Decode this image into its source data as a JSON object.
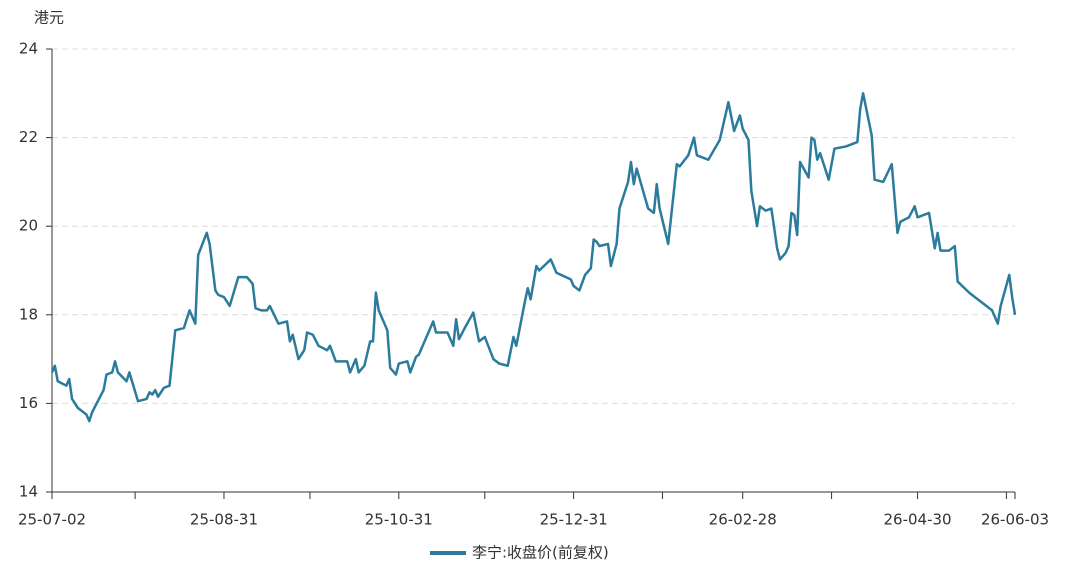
{
  "chart_data": {
    "type": "line",
    "y_label": "港元",
    "xlim": [
      "2025-07-02",
      "2026-06-03"
    ],
    "xticks": [
      {
        "value": "2025-07-02",
        "label": "25-07-02"
      },
      "2025-07-31",
      {
        "value": "2025-08-31",
        "label": "25-08-31"
      },
      "2025-09-30",
      {
        "value": "2025-10-31",
        "label": "25-10-31"
      },
      "2025-11-30",
      {
        "value": "2025-12-31",
        "label": "25-12-31"
      },
      "2026-01-31",
      {
        "value": "2026-02-28",
        "label": "26-02-28"
      },
      "2026-03-31",
      {
        "value": "2026-04-30",
        "label": "26-04-30"
      },
      "2026-05-31",
      {
        "value": "2026-06-03",
        "label": "26-06-03"
      }
    ],
    "ylim": [
      14,
      24
    ],
    "yticks": [
      14,
      16,
      18,
      20,
      22,
      24
    ],
    "grid": true,
    "legend": "bottom",
    "x": [
      "2025-07-02",
      "2025-07-03",
      "2025-07-04",
      "2025-07-07",
      "2025-07-08",
      "2025-07-09",
      "2025-07-11",
      "2025-07-14",
      "2025-07-15",
      "2025-07-16",
      "2025-07-20",
      "2025-07-21",
      "2025-07-23",
      "2025-07-24",
      "2025-07-25",
      "2025-07-28",
      "2025-07-29",
      "2025-08-01",
      "2025-08-04",
      "2025-08-05",
      "2025-08-06",
      "2025-08-07",
      "2025-08-08",
      "2025-08-10",
      "2025-08-12",
      "2025-08-14",
      "2025-08-17",
      "2025-08-19",
      "2025-08-21",
      "2025-08-22",
      "2025-08-25",
      "2025-08-26",
      "2025-08-28",
      "2025-08-29",
      "2025-08-31",
      "2025-09-02",
      "2025-09-05",
      "2025-09-08",
      "2025-09-10",
      "2025-09-11",
      "2025-09-13",
      "2025-09-15",
      "2025-09-16",
      "2025-09-19",
      "2025-09-22",
      "2025-09-23",
      "2025-09-24",
      "2025-09-26",
      "2025-09-28",
      "2025-09-29",
      "2025-10-01",
      "2025-10-03",
      "2025-10-06",
      "2025-10-07",
      "2025-10-09",
      "2025-10-13",
      "2025-10-14",
      "2025-10-16",
      "2025-10-17",
      "2025-10-19",
      "2025-10-21",
      "2025-10-22",
      "2025-10-23",
      "2025-10-24",
      "2025-10-27",
      "2025-10-28",
      "2025-10-30",
      "2025-10-31",
      "2025-11-03",
      "2025-11-04",
      "2025-11-06",
      "2025-11-07",
      "2025-11-12",
      "2025-11-13",
      "2025-11-17",
      "2025-11-19",
      "2025-11-20",
      "2025-11-21",
      "2025-11-23",
      "2025-11-26",
      "2025-11-28",
      "2025-11-30",
      "2025-12-03",
      "2025-12-05",
      "2025-12-08",
      "2025-12-10",
      "2025-12-11",
      "2025-12-14",
      "2025-12-15",
      "2025-12-16",
      "2025-12-18",
      "2025-12-19",
      "2025-12-23",
      "2025-12-25",
      "2025-12-30",
      "2025-12-31",
      "2026-01-02",
      "2026-01-04",
      "2026-01-06",
      "2026-01-07",
      "2026-01-08",
      "2026-01-09",
      "2026-01-12",
      "2026-01-13",
      "2026-01-15",
      "2026-01-16",
      "2026-01-19",
      "2026-01-20",
      "2026-01-21",
      "2026-01-22",
      "2026-01-24",
      "2026-01-26",
      "2026-01-28",
      "2026-01-29",
      "2026-01-30",
      "2026-02-02",
      "2026-02-04",
      "2026-02-05",
      "2026-02-06",
      "2026-02-09",
      "2026-02-11",
      "2026-02-12",
      "2026-02-16",
      "2026-02-20",
      "2026-02-23",
      "2026-02-25",
      "2026-02-27",
      "2026-02-28",
      "2026-03-02",
      "2026-03-03",
      "2026-03-05",
      "2026-03-06",
      "2026-03-08",
      "2026-03-10",
      "2026-03-12",
      "2026-03-13",
      "2026-03-15",
      "2026-03-16",
      "2026-03-17",
      "2026-03-18",
      "2026-03-19",
      "2026-03-20",
      "2026-03-23",
      "2026-03-24",
      "2026-03-25",
      "2026-03-26",
      "2026-03-27",
      "2026-03-30",
      "2026-04-01",
      "2026-04-05",
      "2026-04-09",
      "2026-04-10",
      "2026-04-11",
      "2026-04-14",
      "2026-04-15",
      "2026-04-18",
      "2026-04-21",
      "2026-04-23",
      "2026-04-24",
      "2026-04-27",
      "2026-04-29",
      "2026-04-30",
      "2026-05-04",
      "2026-05-06",
      "2026-05-07",
      "2026-05-08",
      "2026-05-11",
      "2026-05-13",
      "2026-05-14",
      "2026-05-18",
      "2026-05-20",
      "2026-05-22",
      "2026-05-25",
      "2026-05-26",
      "2026-05-28",
      "2026-05-29",
      "2026-06-01",
      "2026-06-02",
      "2026-06-03"
    ],
    "series": [
      {
        "name": "李宁:收盘价(前复权)",
        "color": "#2b7b9c",
        "values": [
          16.7,
          16.85,
          16.5,
          16.4,
          16.55,
          16.1,
          15.9,
          15.75,
          15.6,
          15.8,
          16.3,
          16.65,
          16.7,
          16.95,
          16.7,
          16.5,
          16.7,
          16.05,
          16.1,
          16.25,
          16.2,
          16.3,
          16.15,
          16.35,
          16.4,
          17.65,
          17.7,
          18.1,
          17.8,
          19.35,
          19.85,
          19.6,
          18.55,
          18.45,
          18.4,
          18.2,
          18.85,
          18.85,
          18.7,
          18.15,
          18.1,
          18.1,
          18.2,
          17.8,
          17.85,
          17.4,
          17.55,
          17.0,
          17.2,
          17.6,
          17.55,
          17.3,
          17.2,
          17.3,
          16.95,
          16.95,
          16.7,
          17.0,
          16.7,
          16.85,
          17.4,
          17.4,
          18.5,
          18.1,
          17.65,
          16.8,
          16.65,
          16.9,
          16.95,
          16.7,
          17.05,
          17.1,
          17.85,
          17.6,
          17.6,
          17.3,
          17.9,
          17.45,
          17.7,
          18.05,
          17.4,
          17.5,
          17.0,
          16.9,
          16.85,
          17.5,
          17.3,
          18.3,
          18.6,
          18.35,
          19.1,
          19.0,
          19.25,
          18.95,
          18.8,
          18.65,
          18.55,
          18.9,
          19.05,
          19.7,
          19.65,
          19.55,
          19.6,
          19.1,
          19.6,
          20.4,
          21.0,
          21.45,
          20.95,
          21.3,
          20.85,
          20.4,
          20.3,
          20.95,
          20.4,
          19.6,
          20.8,
          21.4,
          21.35,
          21.6,
          22.0,
          21.6,
          21.5,
          21.95,
          22.8,
          22.15,
          22.5,
          22.2,
          21.95,
          20.8,
          20.0,
          20.45,
          20.35,
          20.4,
          19.5,
          19.25,
          19.4,
          19.55,
          20.3,
          20.25,
          19.8,
          21.45,
          21.1,
          22.0,
          21.95,
          21.5,
          21.65,
          21.05,
          21.75,
          21.8,
          21.9,
          22.65,
          23.0,
          22.05,
          21.05,
          21.0,
          21.4,
          19.85,
          20.1,
          20.2,
          20.45,
          20.2,
          20.3,
          19.5,
          19.85,
          19.45,
          19.45,
          19.55,
          18.75,
          18.5,
          18.4,
          18.3,
          18.15,
          18.1,
          17.8,
          18.2,
          18.9,
          18.4,
          18.0
        ]
      }
    ]
  }
}
